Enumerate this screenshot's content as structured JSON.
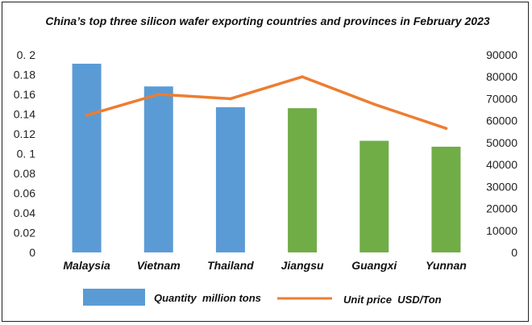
{
  "chart_data": {
    "type": "bar+line",
    "title": "China’s top three silicon wafer exporting countries and provinces in February 2023",
    "categories": [
      "Malaysia",
      "Vietnam",
      "Thailand",
      "Jiangsu",
      "Guangxi",
      "Yunnan"
    ],
    "series": [
      {
        "name": "Quantity  million tons",
        "type": "bar",
        "axis": "left",
        "values": [
          0.191,
          0.168,
          0.147,
          0.146,
          0.113,
          0.107
        ],
        "colors": [
          "#5b9bd5",
          "#5b9bd5",
          "#5b9bd5",
          "#70ad47",
          "#70ad47",
          "#70ad47"
        ]
      },
      {
        "name": "Unit price  USD/Ton",
        "type": "line",
        "axis": "right",
        "values": [
          62500,
          72000,
          70000,
          80000,
          67500,
          56500
        ],
        "color": "#ed7d31"
      }
    ],
    "y_left": {
      "range": [
        0,
        0.2
      ],
      "ticks": [
        "0",
        "0.02",
        "0.04",
        "0.06",
        "0.08",
        "0. 1",
        "0.12",
        "0.14",
        "0.16",
        "0.18",
        "0. 2"
      ],
      "tick_values": [
        0,
        0.02,
        0.04,
        0.06,
        0.08,
        0.1,
        0.12,
        0.14,
        0.16,
        0.18,
        0.2
      ]
    },
    "y_right": {
      "range": [
        0,
        90000
      ],
      "ticks": [
        "0",
        "10000",
        "20000",
        "30000",
        "40000",
        "50000",
        "60000",
        "70000",
        "80000",
        "90000"
      ],
      "tick_values": [
        0,
        10000,
        20000,
        30000,
        40000,
        50000,
        60000,
        70000,
        80000,
        90000
      ]
    },
    "legend": {
      "position": "bottom",
      "bar_label": "Quantity  million tons",
      "line_label": "Unit price  USD/Ton",
      "bar_color": "#5b9bd5",
      "line_color": "#ed7d31"
    },
    "grid": false
  }
}
